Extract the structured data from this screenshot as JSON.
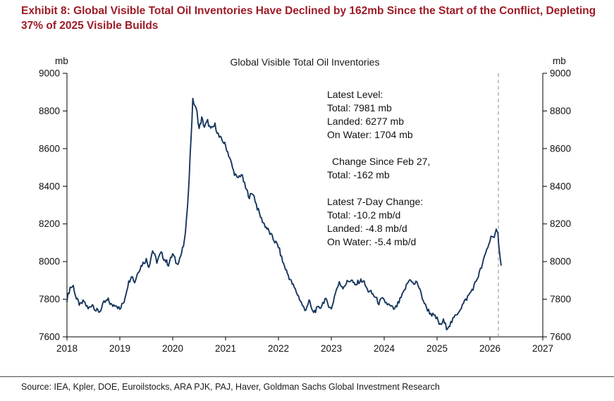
{
  "header": {
    "title": "Exhibit 8: Global Visible Total Oil Inventories Have Declined by 162mb Since the Start of the Conflict, Depleting 37% of 2025 Visible Builds"
  },
  "footer": {
    "source": "Source: IEA, Kpler, DOE, Euroilstocks, ARA PJK, PAJ, Haver, Goldman Sachs Global Investment Research"
  },
  "colors": {
    "title_red": "#9d1c27",
    "line_navy": "#17365d",
    "axis_black": "#000000",
    "dashed_gray": "#8c8c8c"
  },
  "chart_data": {
    "type": "line",
    "title": "Global Visible Total Oil Inventories",
    "y_unit_left": "mb",
    "y_unit_right": "mb",
    "ylim": [
      7600,
      9000
    ],
    "yticks": [
      7600,
      7800,
      8000,
      8200,
      8400,
      8600,
      8800,
      9000
    ],
    "xlim": [
      2018,
      2027
    ],
    "xticks": [
      2018,
      2019,
      2020,
      2021,
      2022,
      2023,
      2024,
      2025,
      2026,
      2027
    ],
    "grid": false,
    "legend": "none",
    "dashed_vline_x": 2026.16,
    "annotation": {
      "latest_level": [
        "Latest Level:",
        "Total: 7981 mb",
        "Landed: 6277 mb",
        "On Water: 1704 mb"
      ],
      "change_since": [
        "Change Since Feb 27,",
        "Total: -162 mb"
      ],
      "latest_7day": [
        "Latest 7-Day Change:",
        "Total: -10.2 mb/d",
        "Landed: -4.8 mb/d",
        "On Water: -5.4 mb/d"
      ]
    },
    "series": [
      {
        "name": "Global Visible Total Oil Inventories",
        "points": [
          [
            2018.0,
            7800
          ],
          [
            2018.06,
            7862
          ],
          [
            2018.12,
            7870
          ],
          [
            2018.18,
            7800
          ],
          [
            2018.25,
            7768
          ],
          [
            2018.32,
            7790
          ],
          [
            2018.4,
            7748
          ],
          [
            2018.48,
            7775
          ],
          [
            2018.55,
            7740
          ],
          [
            2018.62,
            7735
          ],
          [
            2018.7,
            7780
          ],
          [
            2018.78,
            7795
          ],
          [
            2018.85,
            7765
          ],
          [
            2018.92,
            7775
          ],
          [
            2019.0,
            7745
          ],
          [
            2019.08,
            7790
          ],
          [
            2019.15,
            7875
          ],
          [
            2019.22,
            7930
          ],
          [
            2019.28,
            7890
          ],
          [
            2019.35,
            7950
          ],
          [
            2019.42,
            7985
          ],
          [
            2019.5,
            8010
          ],
          [
            2019.55,
            7975
          ],
          [
            2019.62,
            8060
          ],
          [
            2019.7,
            8000
          ],
          [
            2019.78,
            8045
          ],
          [
            2019.85,
            8010
          ],
          [
            2019.92,
            7985
          ],
          [
            2020.0,
            8040
          ],
          [
            2020.08,
            7985
          ],
          [
            2020.15,
            8030
          ],
          [
            2020.22,
            8100
          ],
          [
            2020.28,
            8280
          ],
          [
            2020.33,
            8560
          ],
          [
            2020.38,
            8855
          ],
          [
            2020.42,
            8830
          ],
          [
            2020.46,
            8790
          ],
          [
            2020.5,
            8705
          ],
          [
            2020.55,
            8760
          ],
          [
            2020.6,
            8715
          ],
          [
            2020.66,
            8745
          ],
          [
            2020.72,
            8700
          ],
          [
            2020.8,
            8725
          ],
          [
            2020.88,
            8660
          ],
          [
            2020.95,
            8640
          ],
          [
            2021.0,
            8615
          ],
          [
            2021.08,
            8550
          ],
          [
            2021.15,
            8480
          ],
          [
            2021.22,
            8440
          ],
          [
            2021.3,
            8465
          ],
          [
            2021.38,
            8390
          ],
          [
            2021.45,
            8345
          ],
          [
            2021.52,
            8365
          ],
          [
            2021.6,
            8285
          ],
          [
            2021.68,
            8225
          ],
          [
            2021.75,
            8190
          ],
          [
            2021.82,
            8160
          ],
          [
            2021.9,
            8120
          ],
          [
            2022.0,
            8080
          ],
          [
            2022.08,
            8000
          ],
          [
            2022.15,
            7950
          ],
          [
            2022.22,
            7905
          ],
          [
            2022.3,
            7860
          ],
          [
            2022.38,
            7815
          ],
          [
            2022.45,
            7770
          ],
          [
            2022.5,
            7740
          ],
          [
            2022.58,
            7790
          ],
          [
            2022.65,
            7730
          ],
          [
            2022.72,
            7745
          ],
          [
            2022.8,
            7760
          ],
          [
            2022.88,
            7800
          ],
          [
            2022.95,
            7770
          ],
          [
            2023.0,
            7745
          ],
          [
            2023.08,
            7840
          ],
          [
            2023.15,
            7885
          ],
          [
            2023.22,
            7865
          ],
          [
            2023.3,
            7890
          ],
          [
            2023.38,
            7905
          ],
          [
            2023.45,
            7870
          ],
          [
            2023.52,
            7895
          ],
          [
            2023.6,
            7900
          ],
          [
            2023.68,
            7850
          ],
          [
            2023.75,
            7835
          ],
          [
            2023.82,
            7815
          ],
          [
            2023.9,
            7780
          ],
          [
            2023.96,
            7800
          ],
          [
            2024.04,
            7780
          ],
          [
            2024.12,
            7760
          ],
          [
            2024.2,
            7745
          ],
          [
            2024.28,
            7785
          ],
          [
            2024.36,
            7830
          ],
          [
            2024.44,
            7885
          ],
          [
            2024.5,
            7910
          ],
          [
            2024.56,
            7875
          ],
          [
            2024.62,
            7895
          ],
          [
            2024.7,
            7825
          ],
          [
            2024.78,
            7765
          ],
          [
            2024.86,
            7730
          ],
          [
            2024.94,
            7710
          ],
          [
            2025.0,
            7695
          ],
          [
            2025.06,
            7660
          ],
          [
            2025.12,
            7685
          ],
          [
            2025.18,
            7650
          ],
          [
            2025.24,
            7665
          ],
          [
            2025.3,
            7690
          ],
          [
            2025.38,
            7725
          ],
          [
            2025.46,
            7760
          ],
          [
            2025.54,
            7795
          ],
          [
            2025.62,
            7830
          ],
          [
            2025.7,
            7870
          ],
          [
            2025.78,
            7925
          ],
          [
            2025.86,
            7985
          ],
          [
            2025.92,
            8045
          ],
          [
            2025.98,
            8095
          ],
          [
            2026.04,
            8145
          ],
          [
            2026.08,
            8125
          ],
          [
            2026.12,
            8160
          ],
          [
            2026.15,
            8145
          ],
          [
            2026.18,
            8060
          ],
          [
            2026.21,
            7981
          ]
        ]
      }
    ]
  }
}
